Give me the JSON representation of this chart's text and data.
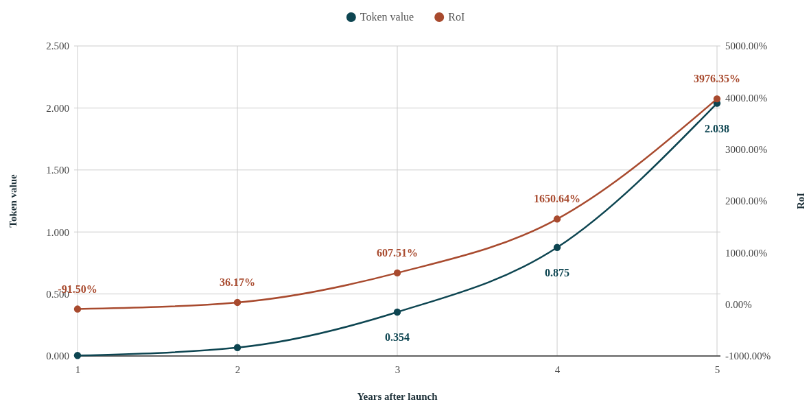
{
  "chart_data": {
    "type": "line",
    "xlabel": "Years after launch",
    "ylabel": "Token value",
    "y2label": "RoI",
    "x": [
      1,
      2,
      3,
      4,
      5
    ],
    "xlim": [
      1,
      5
    ],
    "xticks": [
      1,
      2,
      3,
      4,
      5
    ],
    "ylim": [
      0,
      2.5
    ],
    "yticks": [
      {
        "value": 0,
        "label": "0.000"
      },
      {
        "value": 0.5,
        "label": "0.500"
      },
      {
        "value": 1,
        "label": "1.000"
      },
      {
        "value": 1.5,
        "label": "1.500"
      },
      {
        "value": 2,
        "label": "2.000"
      },
      {
        "value": 2.5,
        "label": "2.500"
      }
    ],
    "y2lim": [
      -1000,
      5000
    ],
    "y2ticks": [
      {
        "value": -1000,
        "label": "-1000.00%"
      },
      {
        "value": 0,
        "label": "0.00%"
      },
      {
        "value": 1000,
        "label": "1000.00%"
      },
      {
        "value": 2000,
        "label": "2000.00%"
      },
      {
        "value": 3000,
        "label": "3000.00%"
      },
      {
        "value": 4000,
        "label": "4000.00%"
      },
      {
        "value": 5000,
        "label": "5000.00%"
      }
    ],
    "series": [
      {
        "name": "Token value",
        "color": "#0d4551",
        "values": [
          0.004,
          0.068,
          0.354,
          0.875,
          2.038
        ],
        "value_labels": [
          null,
          null,
          "0.354",
          "0.875",
          "2.038"
        ]
      },
      {
        "name": "RoI",
        "color": "#a84a2e",
        "axis": "y2",
        "values": [
          -91.5,
          36.17,
          607.51,
          1650.64,
          3976.35
        ],
        "value_labels": [
          "-91.50%",
          "36.17%",
          "607.51%",
          "1650.64%",
          "3976.35%"
        ]
      }
    ],
    "grid": true,
    "legend": "top",
    "marker": "circle",
    "line_style": "solid"
  }
}
